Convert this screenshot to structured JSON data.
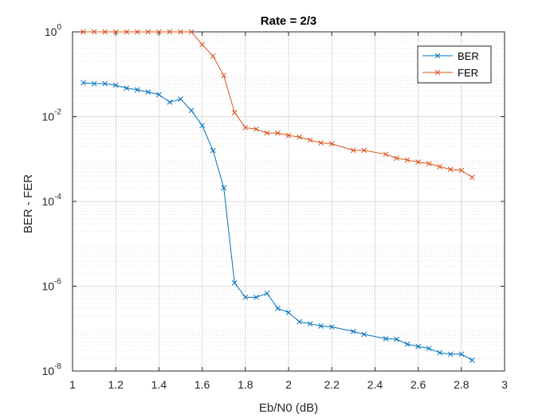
{
  "chart_data": {
    "type": "line",
    "title": "Rate = 2/3",
    "xlabel": "Eb/N0 (dB)",
    "ylabel": "BER - FER",
    "xlim": [
      1,
      3
    ],
    "ylim": [
      1e-08,
      1
    ],
    "yscale": "log",
    "grid": "on (major and minor)",
    "legend_location": "top-right",
    "x_ticks": [
      "1",
      "1.2",
      "1.4",
      "1.6",
      "1.8",
      "2",
      "2.2",
      "2.4",
      "2.6",
      "2.8",
      "3"
    ],
    "y_ticks": [
      {
        "base": "10",
        "exp": "0"
      },
      {
        "base": "10",
        "exp": "-2"
      },
      {
        "base": "10",
        "exp": "-4"
      },
      {
        "base": "10",
        "exp": "-6"
      },
      {
        "base": "10",
        "exp": "-8"
      }
    ],
    "series": [
      {
        "name": "BER",
        "color": "#0072BD",
        "marker": "x",
        "x": [
          1.05,
          1.1,
          1.15,
          1.2,
          1.25,
          1.3,
          1.35,
          1.4,
          1.45,
          1.5,
          1.55,
          1.6,
          1.65,
          1.7,
          1.75,
          1.8,
          1.85,
          1.9,
          1.95,
          2.0,
          2.05,
          2.1,
          2.15,
          2.2,
          2.3,
          2.35,
          2.45,
          2.5,
          2.55,
          2.6,
          2.65,
          2.7,
          2.75,
          2.8,
          2.85
        ],
        "y": [
          0.063,
          0.06,
          0.06,
          0.055,
          0.047,
          0.043,
          0.038,
          0.033,
          0.022,
          0.026,
          0.014,
          0.0062,
          0.0016,
          0.00021,
          1.2e-06,
          5.5e-07,
          5.5e-07,
          6.8e-07,
          3e-07,
          2.4e-07,
          1.45e-07,
          1.3e-07,
          1.15e-07,
          1.1e-07,
          8.6e-08,
          7.3e-08,
          5.8e-08,
          5.6e-08,
          4.3e-08,
          3.8e-08,
          3.4e-08,
          2.7e-08,
          2.5e-08,
          2.5e-08,
          1.8e-08
        ]
      },
      {
        "name": "FER",
        "color": "#D95319",
        "marker": "x",
        "x": [
          1.05,
          1.1,
          1.15,
          1.2,
          1.25,
          1.3,
          1.35,
          1.4,
          1.45,
          1.5,
          1.55,
          1.6,
          1.65,
          1.7,
          1.75,
          1.8,
          1.85,
          1.9,
          1.95,
          2.0,
          2.05,
          2.1,
          2.15,
          2.2,
          2.3,
          2.35,
          2.45,
          2.5,
          2.55,
          2.6,
          2.65,
          2.7,
          2.75,
          2.8,
          2.85
        ],
        "y": [
          1,
          1,
          1,
          1,
          1,
          1,
          1,
          1,
          1,
          1,
          1,
          0.5,
          0.27,
          0.093,
          0.0125,
          0.0055,
          0.0051,
          0.0041,
          0.0041,
          0.0036,
          0.0033,
          0.0028,
          0.0024,
          0.0023,
          0.0016,
          0.0016,
          0.0013,
          0.00105,
          0.00095,
          0.00085,
          0.00078,
          0.00066,
          0.00057,
          0.00054,
          0.00037
        ]
      }
    ]
  }
}
